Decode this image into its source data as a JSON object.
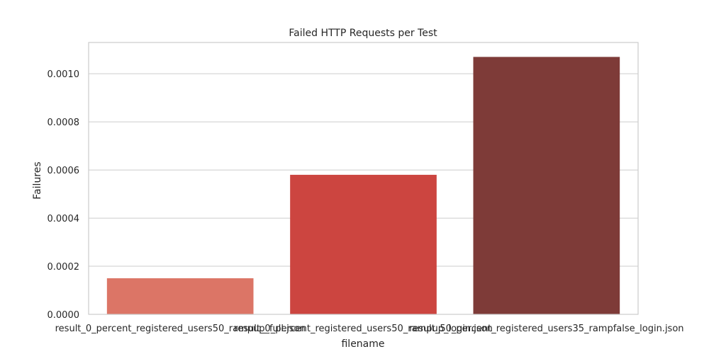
{
  "chart_data": {
    "type": "bar",
    "title": "Failed HTTP Requests per Test",
    "xlabel": "filename",
    "ylabel": "Failures",
    "categories": [
      "result_0_percent_registered_users50_rampup_full.json",
      "result_0_percent_registered_users50_rampup_login.json",
      "result_50_percent_registered_users35_rampfalse_login.json"
    ],
    "values": [
      0.00015,
      0.00058,
      0.00107
    ],
    "ylim": [
      0,
      0.00113
    ],
    "yticks": [
      "0.0000",
      "0.0002",
      "0.0004",
      "0.0006",
      "0.0008",
      "0.0010"
    ],
    "ytick_values": [
      0,
      0.0002,
      0.0004,
      0.0006,
      0.0008,
      0.001
    ],
    "colors": [
      "#dc7566",
      "#cc4540",
      "#7e3b38"
    ],
    "grid": true,
    "legend": "none"
  }
}
